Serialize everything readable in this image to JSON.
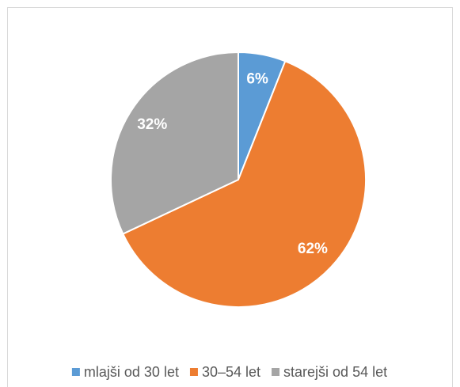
{
  "chart_data": {
    "type": "pie",
    "categories": [
      "mlajši od 30 let",
      "30–54 let",
      "starejši od 54 let"
    ],
    "values": [
      6,
      62,
      32
    ],
    "value_labels": [
      "6%",
      "62%",
      "32%"
    ],
    "colors": [
      "#5b9bd5",
      "#ed7d31",
      "#a5a5a5"
    ],
    "legend": "bottom"
  }
}
